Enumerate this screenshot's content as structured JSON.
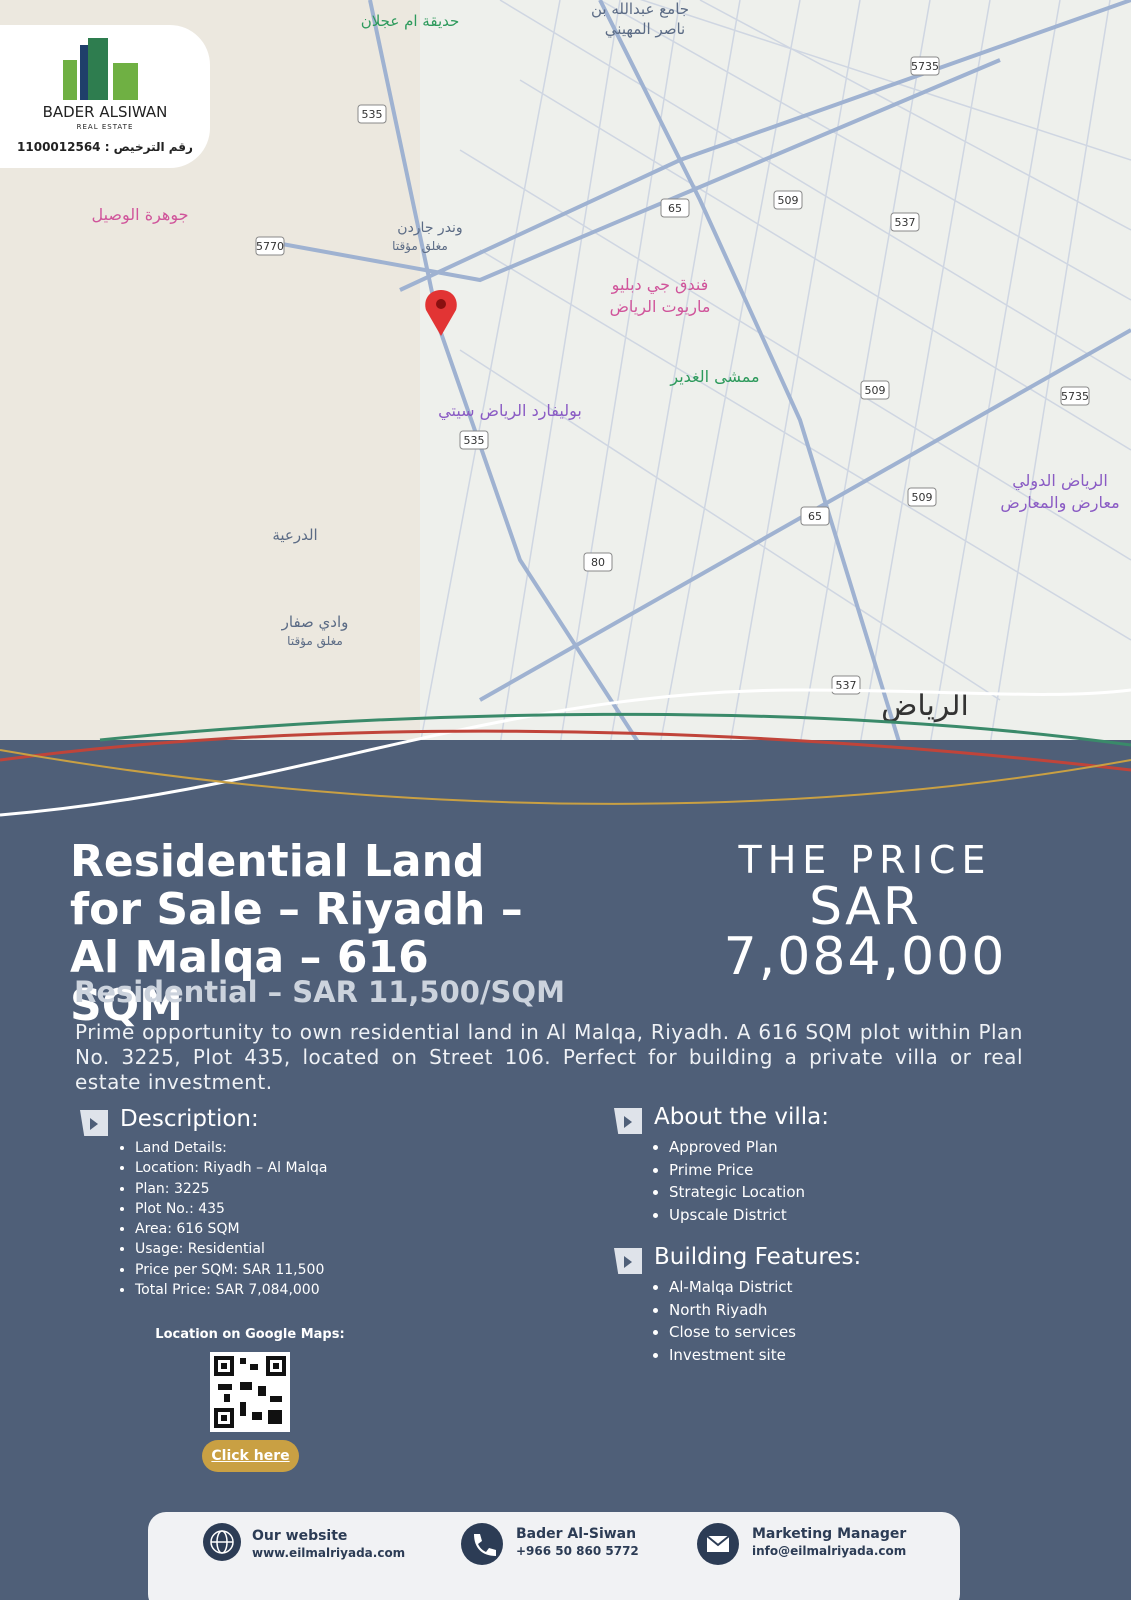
{
  "logo": {
    "name": "BADER ALSIWAN",
    "sub": "REAL ESTATE",
    "license": "رقم الترخيص : 1100012564"
  },
  "map": {
    "labels": [
      "حديقة ام عجلان",
      "جامع عبدالله بن",
      "ناصر المهيني",
      "جوهرة الوصيل",
      "وندر جاردن",
      "مغلق مؤقتا",
      "فندق جي دبليو",
      "ماريوت الرياض",
      "ممشى الغدير",
      "بوليفارد الرياض سيتي",
      "الدرعية",
      "وادي صفار",
      "مغلق مؤقتا",
      "الرياض",
      "الرياض الدولي",
      "معارض والمعارض"
    ],
    "roads": [
      "535",
      "5735",
      "509",
      "65",
      "537",
      "5770",
      "509",
      "5735",
      "535",
      "509",
      "65",
      "80",
      "537"
    ]
  },
  "title": "Residential Land for Sale – Riyadh – Al Malqa – 616 SQM",
  "subtitle": "Residential – SAR 11,500/SQM",
  "price": {
    "label": "THE PRICE",
    "currency": "SAR",
    "amount": "7,084,000"
  },
  "intro": "Prime opportunity to own residential land in Al Malqa, Riyadh. A 616 SQM plot within Plan No. 3225, Plot 435, located on Street 106. Perfect for building a private villa or real estate investment.",
  "description": {
    "heading": "Description:",
    "items": [
      "Land Details:",
      "Location: Riyadh – Al Malqa",
      "Plan: 3225",
      "Plot No.: 435",
      "Area: 616 SQM",
      "Usage: Residential",
      "Price per SQM: SAR 11,500",
      "Total Price: SAR 7,084,000"
    ]
  },
  "about": {
    "heading": "About the villa:",
    "items": [
      "Approved Plan",
      "Prime Price",
      "Strategic Location",
      "Upscale District"
    ]
  },
  "features": {
    "heading": "Building Features:",
    "items": [
      "Al-Malqa District",
      "North Riyadh",
      "Close to services",
      "Investment site"
    ]
  },
  "qr": {
    "caption": "Location on Google Maps:",
    "button": "Click here"
  },
  "footer": {
    "items": [
      {
        "title": "Our website",
        "detail": "www.eilmalriyada.com"
      },
      {
        "title": "Bader Al-Siwan",
        "detail": "+966 50 860 5772"
      },
      {
        "title": "Marketing Manager",
        "detail": "info@eilmalriyada.com"
      }
    ]
  }
}
